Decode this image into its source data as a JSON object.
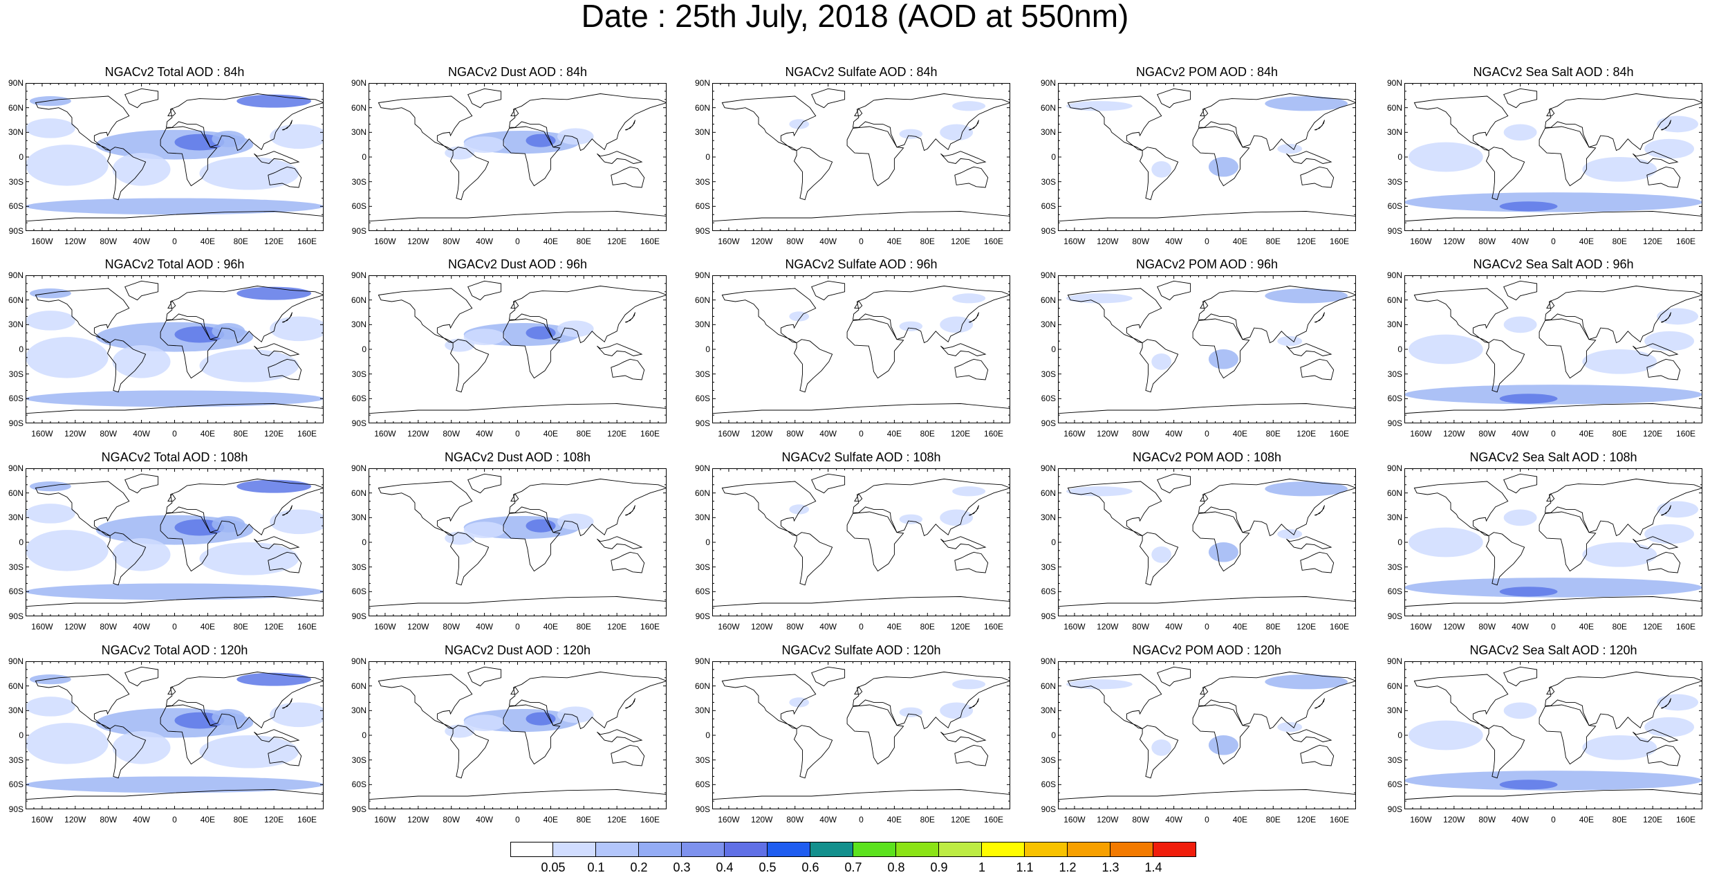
{
  "title": "Date : 25th July, 2018 (AOD at 550nm)",
  "lat_ticks": [
    "90N",
    "60N",
    "30N",
    "0",
    "30S",
    "60S",
    "90S"
  ],
  "lon_ticks": [
    "160W",
    "120W",
    "80W",
    "40W",
    "0",
    "40E",
    "80E",
    "120E",
    "160E"
  ],
  "colors": {
    "land_line": "#000000",
    "low": "#cfdcff",
    "mid": "#9db6f5",
    "high": "#5d78e8"
  },
  "panels": [
    [
      {
        "title": "NGACv2 Total AOD : 84h",
        "species": "total"
      },
      {
        "title": "NGACv2 Dust AOD : 84h",
        "species": "dust"
      },
      {
        "title": "NGACv2 Sulfate AOD : 84h",
        "species": "sulfate"
      },
      {
        "title": "NGACv2 POM AOD : 84h",
        "species": "pom"
      },
      {
        "title": "NGACv2 Sea Salt AOD : 84h",
        "species": "seasalt"
      }
    ],
    [
      {
        "title": "NGACv2 Total AOD : 96h",
        "species": "total"
      },
      {
        "title": "NGACv2 Dust AOD : 96h",
        "species": "dust"
      },
      {
        "title": "NGACv2 Sulfate AOD : 96h",
        "species": "sulfate"
      },
      {
        "title": "NGACv2 POM AOD : 96h",
        "species": "pom"
      },
      {
        "title": "NGACv2 Sea Salt AOD : 96h",
        "species": "seasalt"
      }
    ],
    [
      {
        "title": "NGACv2 Total AOD : 108h",
        "species": "total"
      },
      {
        "title": "NGACv2 Dust AOD : 108h",
        "species": "dust"
      },
      {
        "title": "NGACv2 Sulfate AOD : 108h",
        "species": "sulfate"
      },
      {
        "title": "NGACv2 POM AOD : 108h",
        "species": "pom"
      },
      {
        "title": "NGACv2 Sea Salt AOD : 108h",
        "species": "seasalt"
      }
    ],
    [
      {
        "title": "NGACv2 Total AOD : 120h",
        "species": "total"
      },
      {
        "title": "NGACv2 Dust AOD : 120h",
        "species": "dust"
      },
      {
        "title": "NGACv2 Sulfate AOD : 120h",
        "species": "sulfate"
      },
      {
        "title": "NGACv2 POM AOD : 120h",
        "species": "pom"
      },
      {
        "title": "NGACv2 Sea Salt  AOD : 120h",
        "species": "seasalt"
      }
    ]
  ],
  "colorbar": {
    "labels": [
      "0.05",
      "0.1",
      "0.2",
      "0.3",
      "0.4",
      "0.5",
      "0.6",
      "0.7",
      "0.8",
      "0.9",
      "1",
      "1.1",
      "1.2",
      "1.3",
      "1.4"
    ],
    "colors": [
      "#ffffff",
      "#d1ddff",
      "#b3c6fb",
      "#94acf5",
      "#7e92ee",
      "#6070e6",
      "#1f5df0",
      "#13908d",
      "#5ce21e",
      "#8be316",
      "#bdec44",
      "#fffc00",
      "#f8c200",
      "#f7a000",
      "#f27a00",
      "#f01e0c"
    ]
  }
}
